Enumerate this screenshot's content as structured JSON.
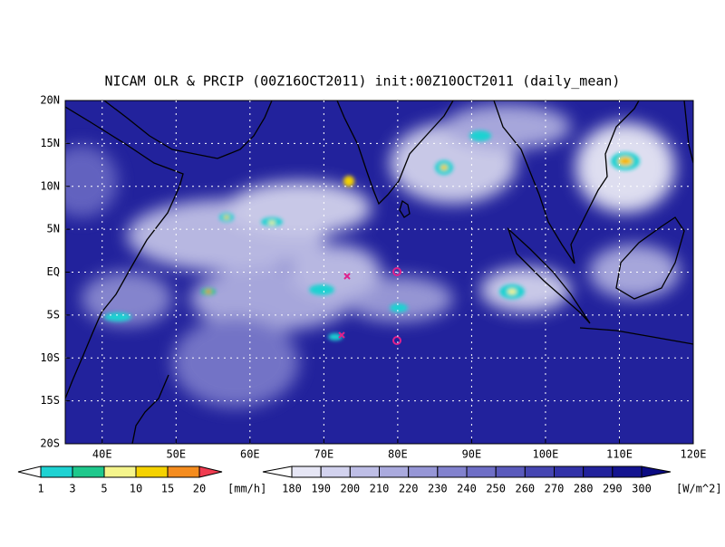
{
  "title": "NICAM OLR & PRCIP (00Z16OCT2011) init:00Z10OCT2011 (daily_mean)",
  "map": {
    "lat_labels": [
      "20N",
      "15N",
      "10N",
      "5N",
      "EQ",
      "5S",
      "10S",
      "15S",
      "20S"
    ],
    "lon_labels": [
      "40E",
      "50E",
      "60E",
      "70E",
      "80E",
      "90E",
      "100E",
      "110E",
      "120E"
    ]
  },
  "precip_colorbar": {
    "ticks": [
      1,
      3,
      5,
      10,
      15,
      20
    ],
    "unit": "[mm/h]",
    "colors": [
      "#ffffff",
      "#1ed2d2",
      "#1ec88c",
      "#f5f58c",
      "#f5d200",
      "#f58c1e",
      "#f03c50"
    ]
  },
  "olr_colorbar": {
    "ticks": [
      180,
      190,
      200,
      210,
      220,
      230,
      240,
      250,
      260,
      270,
      280,
      290,
      300
    ],
    "unit": "[W/m^2]",
    "colors": [
      "#ffffff",
      "#e6e6f5",
      "#d2d2ee",
      "#bebee6",
      "#aaaade",
      "#9696d6",
      "#8282ce",
      "#6e6ec6",
      "#5a5abc",
      "#4646b2",
      "#3232a8",
      "#22229c",
      "#141490",
      "#0a0a82"
    ]
  }
}
